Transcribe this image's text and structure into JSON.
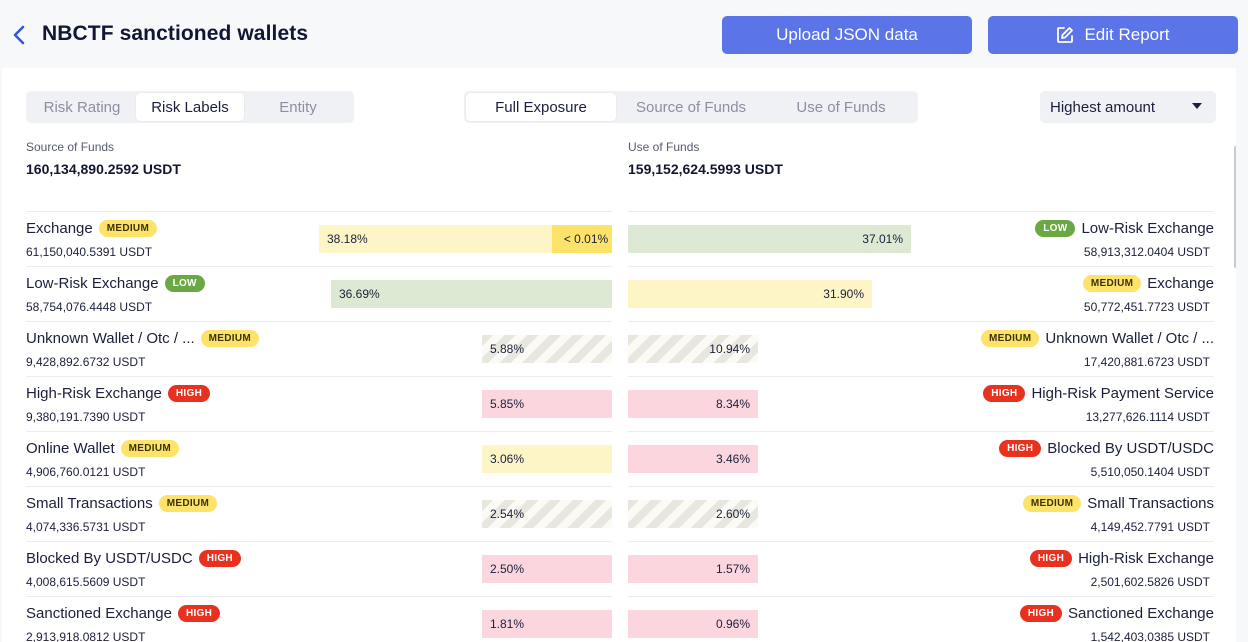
{
  "header": {
    "title": "NBCTF sanctioned wallets",
    "upload_label": "Upload JSON data",
    "edit_label": "Edit Report"
  },
  "view_tabs": [
    "Risk Rating",
    "Risk Labels",
    "Entity"
  ],
  "view_tabs_active": "Risk Labels",
  "exposure_tabs": [
    "Full Exposure",
    "Source of Funds",
    "Use of Funds"
  ],
  "exposure_tabs_active": "Full Exposure",
  "sort": {
    "selected": "Highest amount"
  },
  "source_summary": {
    "label": "Source of Funds",
    "value": "160,134,890.2592 USDT"
  },
  "use_summary": {
    "label": "Use of Funds",
    "value": "159,152,624.5993 USDT"
  },
  "source_rows": [
    {
      "name": "Exchange",
      "risk": "MEDIUM",
      "amount": "61,150,040.5391 USDT",
      "percent": "38.18%",
      "fraction": 0.3818,
      "extra": "< 0.01%"
    },
    {
      "name": "Low-Risk Exchange",
      "risk": "LOW",
      "amount": "58,754,076.4448 USDT",
      "percent": "36.69%",
      "fraction": 0.3669
    },
    {
      "name": "Unknown Wallet / Otc / ...",
      "risk": "MEDIUM",
      "amount": "9,428,892.6732 USDT",
      "percent": "5.88%",
      "fraction": 0.0588,
      "pattern": "unknown"
    },
    {
      "name": "High-Risk Exchange",
      "risk": "HIGH",
      "amount": "9,380,191.7390 USDT",
      "percent": "5.85%",
      "fraction": 0.0585
    },
    {
      "name": "Online Wallet",
      "risk": "MEDIUM",
      "amount": "4,906,760.0121 USDT",
      "percent": "3.06%",
      "fraction": 0.0306
    },
    {
      "name": "Small Transactions",
      "risk": "MEDIUM",
      "amount": "4,074,336.5731 USDT",
      "percent": "2.54%",
      "fraction": 0.0254,
      "pattern": "unknown"
    },
    {
      "name": "Blocked By USDT/USDC",
      "risk": "HIGH",
      "amount": "4,008,615.5609 USDT",
      "percent": "2.50%",
      "fraction": 0.025
    },
    {
      "name": "Sanctioned Exchange",
      "risk": "HIGH",
      "amount": "2,913,918.0812 USDT",
      "percent": "1.81%",
      "fraction": 0.0181
    }
  ],
  "use_rows": [
    {
      "name": "Low-Risk Exchange",
      "risk": "LOW",
      "amount": "58,913,312.0404 USDT",
      "percent": "37.01%",
      "fraction": 0.3701
    },
    {
      "name": "Exchange",
      "risk": "MEDIUM",
      "amount": "50,772,451.7723 USDT",
      "percent": "31.90%",
      "fraction": 0.319
    },
    {
      "name": "Unknown Wallet / Otc / ...",
      "risk": "MEDIUM",
      "amount": "17,420,881.6723 USDT",
      "percent": "10.94%",
      "fraction": 0.1094,
      "pattern": "unknown"
    },
    {
      "name": "High-Risk Payment Service",
      "risk": "HIGH",
      "amount": "13,277,626.1114 USDT",
      "percent": "8.34%",
      "fraction": 0.0834
    },
    {
      "name": "Blocked By USDT/USDC",
      "risk": "HIGH",
      "amount": "5,510,050.1404 USDT",
      "percent": "3.46%",
      "fraction": 0.0346
    },
    {
      "name": "Small Transactions",
      "risk": "MEDIUM",
      "amount": "4,149,452.7791 USDT",
      "percent": "2.60%",
      "fraction": 0.026,
      "pattern": "unknown"
    },
    {
      "name": "High-Risk Exchange",
      "risk": "HIGH",
      "amount": "2,501,602.5826 USDT",
      "percent": "1.57%",
      "fraction": 0.0157
    },
    {
      "name": "Sanctioned Exchange",
      "risk": "HIGH",
      "amount": "1,542,403.0385 USDT",
      "percent": "0.96%",
      "fraction": 0.0096
    }
  ],
  "colors": {
    "accent": "#5b74e8",
    "medium": "#fde36a",
    "low": "#6aa843",
    "high": "#e8321f"
  },
  "icons": {
    "back": "chevron-left-icon",
    "edit": "edit-icon",
    "sort": "caret-down-icon"
  }
}
